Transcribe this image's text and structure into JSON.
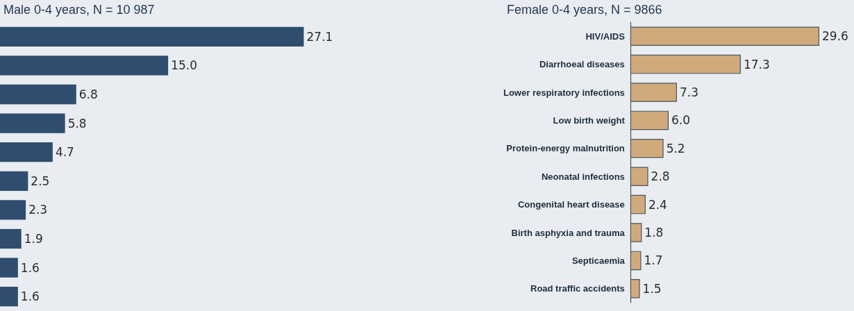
{
  "chart_data": [
    {
      "type": "bar",
      "orientation": "horizontal",
      "title": "Male 0-4 years, N = 10 987",
      "categories": [
        null,
        null,
        null,
        null,
        null,
        null,
        null,
        null,
        null,
        null
      ],
      "values": [
        27.1,
        15.0,
        6.8,
        5.8,
        4.7,
        2.5,
        2.3,
        1.9,
        1.6,
        1.6
      ],
      "color": "#2f4d6e",
      "value_labels": [
        "27.1",
        "15.0",
        "6.8",
        "5.8",
        "4.7",
        "2.5",
        "2.3",
        "1.9",
        "1.6",
        "1.6"
      ],
      "tick_labels": false
    },
    {
      "type": "bar",
      "orientation": "horizontal",
      "title": "Female 0-4 years, N = 9866",
      "categories": [
        "HIV/AIDS",
        "Diarrhoeal diseases",
        "Lower respiratory infections",
        "Low birth weight",
        "Protein-energy malnutrition",
        "Neonatal infections",
        "Congenital heart disease",
        "Birth asphyxia and trauma",
        "Septicaemia",
        "Road traffic accidents"
      ],
      "values": [
        29.6,
        17.3,
        7.3,
        6.0,
        5.2,
        2.8,
        2.4,
        1.8,
        1.7,
        1.5
      ],
      "color": "#d1aa7c",
      "value_labels": [
        "29.6",
        "17.3",
        "7.3",
        "6.0",
        "5.2",
        "2.8",
        "2.4",
        "1.8",
        "1.7",
        "1.5"
      ],
      "tick_labels": "y"
    }
  ]
}
